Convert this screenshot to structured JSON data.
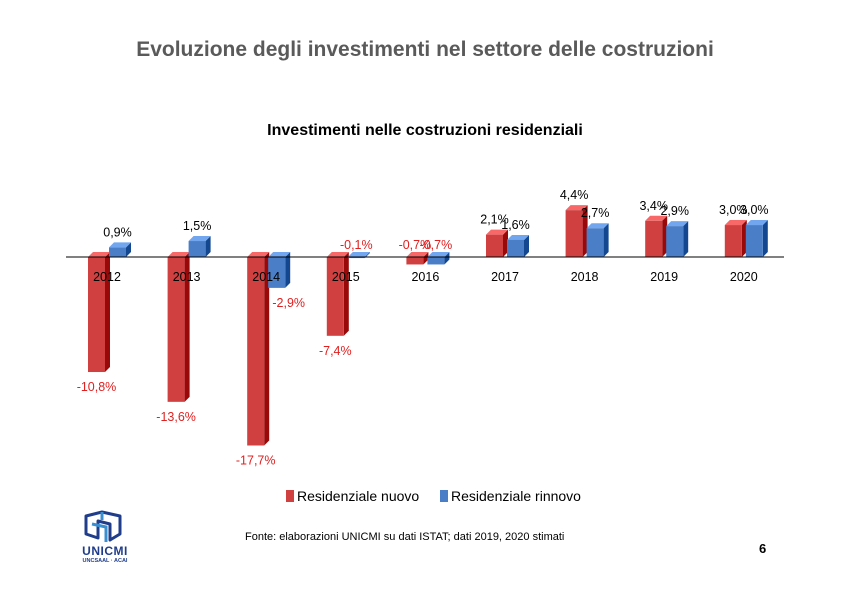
{
  "slide": {
    "title": "Evoluzione degli investimenti nel settore delle costruzioni",
    "source": "Fonte: elaborazioni UNICMI su dati ISTAT; dati 2019, 2020 stimati",
    "page_number": "6"
  },
  "logo": {
    "name": "UNICMI",
    "subtitle": "UNCSAAL · ACAI"
  },
  "chart_data": {
    "type": "bar",
    "title": "Investimenti nelle costruzioni residenziali",
    "xlabel": "",
    "ylabel": "",
    "categories": [
      "2012",
      "2013",
      "2014",
      "2015",
      "2016",
      "2017",
      "2018",
      "2019",
      "2020"
    ],
    "series": [
      {
        "name": "Residenziale nuovo",
        "color": "#d04040",
        "values": [
          -10.8,
          -13.6,
          -17.7,
          -7.4,
          -0.7,
          2.1,
          4.4,
          3.4,
          3.0
        ],
        "labels": [
          "-10,8%",
          "-13,6%",
          "-17,7%",
          "-7,4%",
          "-0,7%",
          "2,1%",
          "4,4%",
          "3,4%",
          "3,0%"
        ]
      },
      {
        "name": "Residenziale rinnovo",
        "color": "#4a7fc8",
        "values": [
          0.9,
          1.5,
          -2.9,
          -0.1,
          -0.7,
          1.6,
          2.7,
          2.9,
          3.0
        ],
        "labels": [
          "0,9%",
          "1,5%",
          "-2,9%",
          "-0,1%",
          "-0,7%",
          "1,6%",
          "2,7%",
          "2,9%",
          "3,0%"
        ]
      }
    ],
    "negative_label_color": "#e02020",
    "positive_label_color": "#000000",
    "legend_position": "bottom",
    "grid": false
  }
}
